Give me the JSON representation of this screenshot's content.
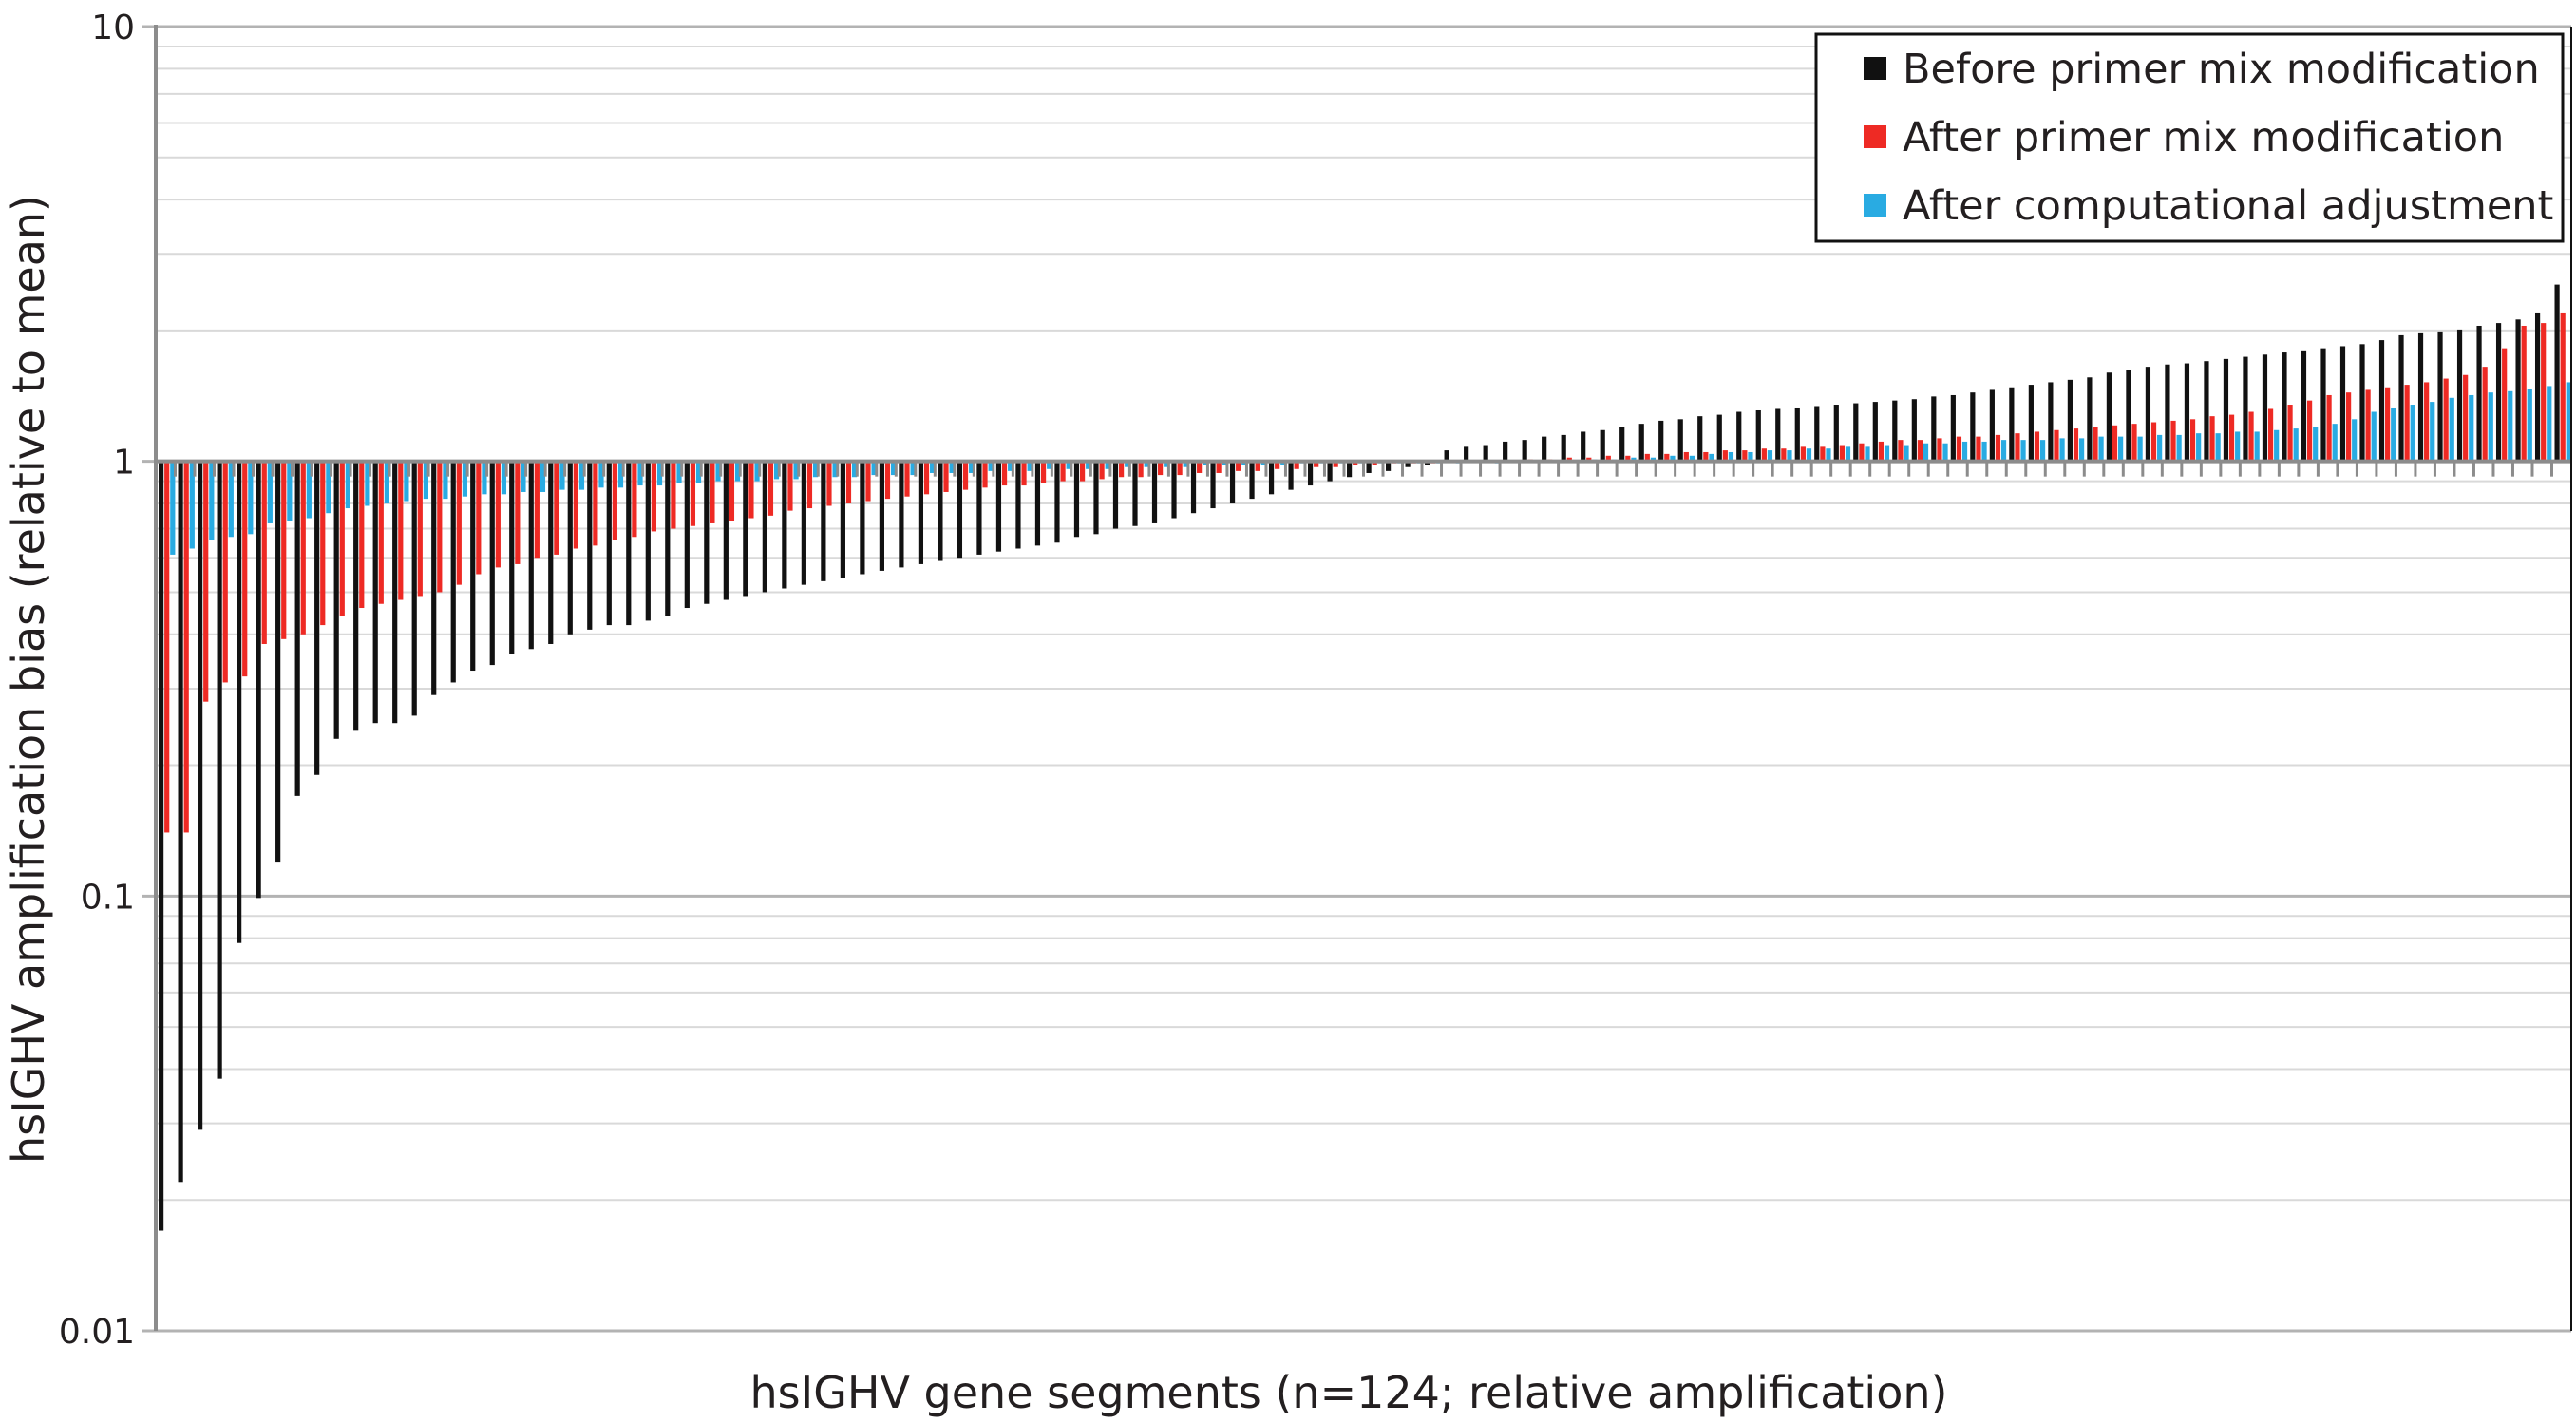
{
  "chart_data": {
    "type": "bar",
    "scale": "log",
    "title": "",
    "xlabel": "hsIGHV gene segments (n=124; relative amplification)",
    "ylabel": "hsIGHV amplification bias (relative to mean)",
    "ylim": [
      0.01,
      10
    ],
    "yticks": [
      "0.01",
      "0.1",
      "1",
      "10"
    ],
    "baseline": 1,
    "grid": true,
    "legend_position": "top-right",
    "series": [
      {
        "name": "Before primer mix modification",
        "color": "#111111",
        "values": [
          0.017,
          0.022,
          0.029,
          0.038,
          0.078,
          0.099,
          0.12,
          0.17,
          0.19,
          0.23,
          0.24,
          0.25,
          0.25,
          0.26,
          0.29,
          0.31,
          0.33,
          0.34,
          0.36,
          0.37,
          0.38,
          0.4,
          0.41,
          0.42,
          0.42,
          0.43,
          0.44,
          0.46,
          0.47,
          0.48,
          0.49,
          0.5,
          0.51,
          0.52,
          0.53,
          0.54,
          0.55,
          0.56,
          0.57,
          0.58,
          0.59,
          0.6,
          0.61,
          0.62,
          0.63,
          0.64,
          0.65,
          0.67,
          0.68,
          0.7,
          0.71,
          0.72,
          0.74,
          0.76,
          0.78,
          0.8,
          0.82,
          0.84,
          0.86,
          0.88,
          0.9,
          0.92,
          0.94,
          0.95,
          0.97,
          0.98,
          1.06,
          1.08,
          1.09,
          1.11,
          1.12,
          1.14,
          1.15,
          1.17,
          1.18,
          1.2,
          1.22,
          1.24,
          1.25,
          1.27,
          1.28,
          1.3,
          1.31,
          1.32,
          1.33,
          1.34,
          1.35,
          1.36,
          1.37,
          1.38,
          1.39,
          1.41,
          1.42,
          1.44,
          1.46,
          1.48,
          1.5,
          1.52,
          1.54,
          1.56,
          1.6,
          1.62,
          1.65,
          1.67,
          1.68,
          1.7,
          1.72,
          1.74,
          1.76,
          1.78,
          1.8,
          1.82,
          1.84,
          1.86,
          1.9,
          1.95,
          1.97,
          1.99,
          2.01,
          2.05,
          2.08,
          2.12,
          2.2,
          2.55
        ]
      },
      {
        "name": "After primer mix modification",
        "color": "#ee2a24",
        "values": [
          0.14,
          0.14,
          0.28,
          0.31,
          0.32,
          0.38,
          0.39,
          0.4,
          0.42,
          0.44,
          0.46,
          0.47,
          0.48,
          0.49,
          0.5,
          0.52,
          0.55,
          0.57,
          0.58,
          0.6,
          0.61,
          0.63,
          0.64,
          0.66,
          0.67,
          0.69,
          0.7,
          0.71,
          0.72,
          0.73,
          0.74,
          0.75,
          0.77,
          0.78,
          0.79,
          0.8,
          0.81,
          0.82,
          0.83,
          0.84,
          0.85,
          0.86,
          0.87,
          0.88,
          0.88,
          0.89,
          0.9,
          0.9,
          0.91,
          0.92,
          0.92,
          0.93,
          0.93,
          0.94,
          0.94,
          0.95,
          0.95,
          0.96,
          0.96,
          0.97,
          0.97,
          0.98,
          0.98,
          0.99,
          0.99,
          0.99,
          1.0,
          1.0,
          1.0,
          1.0,
          1.01,
          1.01,
          1.02,
          1.02,
          1.03,
          1.03,
          1.04,
          1.04,
          1.05,
          1.05,
          1.06,
          1.06,
          1.07,
          1.07,
          1.08,
          1.08,
          1.09,
          1.1,
          1.11,
          1.12,
          1.12,
          1.13,
          1.14,
          1.14,
          1.15,
          1.16,
          1.17,
          1.18,
          1.19,
          1.2,
          1.21,
          1.22,
          1.23,
          1.24,
          1.25,
          1.27,
          1.28,
          1.3,
          1.32,
          1.35,
          1.38,
          1.42,
          1.44,
          1.46,
          1.48,
          1.5,
          1.52,
          1.55,
          1.58,
          1.65,
          1.82,
          2.05,
          2.08,
          2.2
        ]
      },
      {
        "name": "After computational adjustment",
        "color": "#29abe2",
        "values": [
          0.61,
          0.63,
          0.66,
          0.67,
          0.68,
          0.72,
          0.73,
          0.74,
          0.76,
          0.78,
          0.79,
          0.8,
          0.81,
          0.82,
          0.82,
          0.83,
          0.84,
          0.84,
          0.85,
          0.85,
          0.86,
          0.86,
          0.87,
          0.87,
          0.88,
          0.88,
          0.89,
          0.89,
          0.9,
          0.9,
          0.9,
          0.91,
          0.91,
          0.92,
          0.92,
          0.92,
          0.93,
          0.93,
          0.93,
          0.94,
          0.94,
          0.94,
          0.95,
          0.95,
          0.95,
          0.96,
          0.96,
          0.96,
          0.96,
          0.97,
          0.97,
          0.97,
          0.97,
          0.98,
          0.98,
          0.98,
          0.98,
          0.98,
          0.99,
          0.99,
          0.99,
          0.99,
          0.99,
          0.99,
          0.99,
          0.99,
          0.99,
          1.0,
          0.99,
          1.0,
          1.0,
          1.0,
          1.0,
          1.01,
          1.01,
          1.02,
          1.02,
          1.03,
          1.03,
          1.04,
          1.05,
          1.05,
          1.06,
          1.06,
          1.07,
          1.07,
          1.08,
          1.08,
          1.09,
          1.09,
          1.1,
          1.1,
          1.11,
          1.11,
          1.12,
          1.12,
          1.12,
          1.13,
          1.13,
          1.14,
          1.14,
          1.14,
          1.15,
          1.15,
          1.16,
          1.16,
          1.17,
          1.17,
          1.18,
          1.19,
          1.2,
          1.22,
          1.25,
          1.3,
          1.33,
          1.35,
          1.37,
          1.4,
          1.42,
          1.44,
          1.45,
          1.47,
          1.49,
          1.52
        ]
      }
    ]
  }
}
